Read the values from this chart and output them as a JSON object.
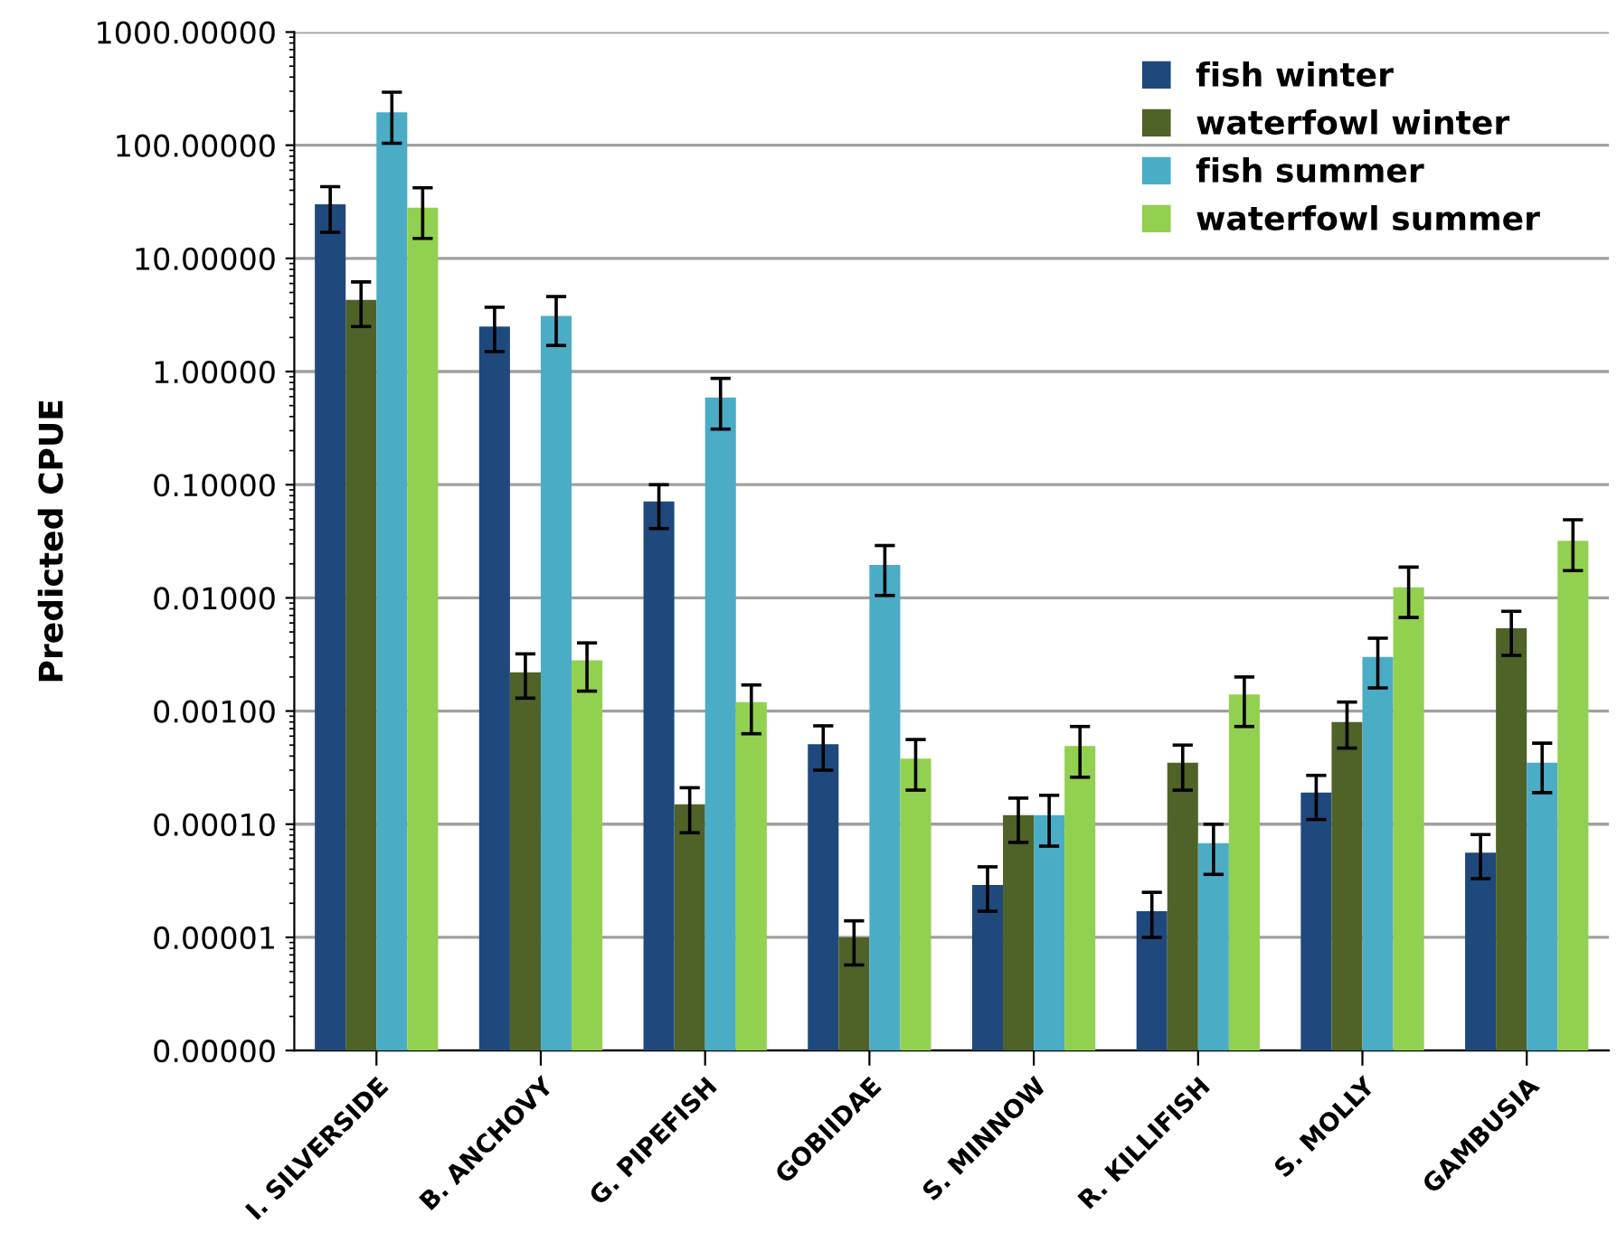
{
  "chart_data": {
    "type": "bar",
    "ylabel": "Predicted CPUE",
    "log": "y",
    "grid": "y",
    "legend": "top right",
    "categories": [
      "I. SILVERSIDE",
      "B. ANCHOVY",
      "G. PIPEFISH",
      "GOBIIDAE",
      "S. MINNOW",
      "R. KILLIFISH",
      "S. MOLLY",
      "GAMBUSIA"
    ],
    "ylim": [
      1e-06,
      1000
    ],
    "yticks": [
      {
        "value": 1e-06,
        "label": "0.00000"
      },
      {
        "value": 1e-05,
        "label": "0.00001"
      },
      {
        "value": 0.0001,
        "label": "0.00010"
      },
      {
        "value": 0.001,
        "label": "0.00100"
      },
      {
        "value": 0.01,
        "label": "0.01000"
      },
      {
        "value": 0.1,
        "label": "0.10000"
      },
      {
        "value": 1,
        "label": "1.00000"
      },
      {
        "value": 10,
        "label": "10.00000"
      },
      {
        "value": 100,
        "label": "100.00000"
      },
      {
        "value": 1000,
        "label": "1000.00000"
      }
    ],
    "series": [
      {
        "name": "fish winter",
        "color": "#1f497d",
        "values": [
          30,
          2.5,
          0.071,
          0.00051,
          2.9e-05,
          1.7e-05,
          0.00019,
          5.6e-05
        ],
        "errors": [
          [
            17,
            43
          ],
          [
            1.5,
            3.7
          ],
          [
            0.041,
            0.1
          ],
          [
            0.0003,
            0.00074
          ],
          [
            1.7e-05,
            4.2e-05
          ],
          [
            1e-05,
            2.5e-05
          ],
          [
            0.00011,
            0.00027
          ],
          [
            3.3e-05,
            8.1e-05
          ]
        ]
      },
      {
        "name": "waterfowl winter",
        "color": "#4f6228",
        "values": [
          4.3,
          0.0022,
          0.00015,
          1e-05,
          0.00012,
          0.00035,
          0.0008,
          0.0054
        ],
        "errors": [
          [
            2.5,
            6.2
          ],
          [
            0.0013,
            0.0032
          ],
          [
            8.4e-05,
            0.00021
          ],
          [
            5.7e-06,
            1.4e-05
          ],
          [
            6.9e-05,
            0.00017
          ],
          [
            0.0002,
            0.0005
          ],
          [
            0.00047,
            0.0012
          ],
          [
            0.0031,
            0.0076
          ]
        ]
      },
      {
        "name": "fish summer",
        "color": "#4bacc6",
        "values": [
          195,
          3.1,
          0.59,
          0.0195,
          0.00012,
          6.8e-05,
          0.003,
          0.00035
        ],
        "errors": [
          [
            104,
            294
          ],
          [
            1.7,
            4.6
          ],
          [
            0.31,
            0.87
          ],
          [
            0.0105,
            0.029
          ],
          [
            6.4e-05,
            0.00018
          ],
          [
            3.6e-05,
            0.0001
          ],
          [
            0.0016,
            0.0044
          ],
          [
            0.00019,
            0.00052
          ]
        ]
      },
      {
        "name": "waterfowl summer",
        "color": "#92d050",
        "values": [
          28,
          0.0028,
          0.0012,
          0.00038,
          0.00049,
          0.0014,
          0.0124,
          0.032
        ],
        "errors": [
          [
            15,
            42
          ],
          [
            0.0015,
            0.004
          ],
          [
            0.00063,
            0.0017
          ],
          [
            0.0002,
            0.00056
          ],
          [
            0.00026,
            0.00073
          ],
          [
            0.00073,
            0.002
          ],
          [
            0.0067,
            0.0187
          ],
          [
            0.0174,
            0.049
          ]
        ]
      }
    ]
  }
}
